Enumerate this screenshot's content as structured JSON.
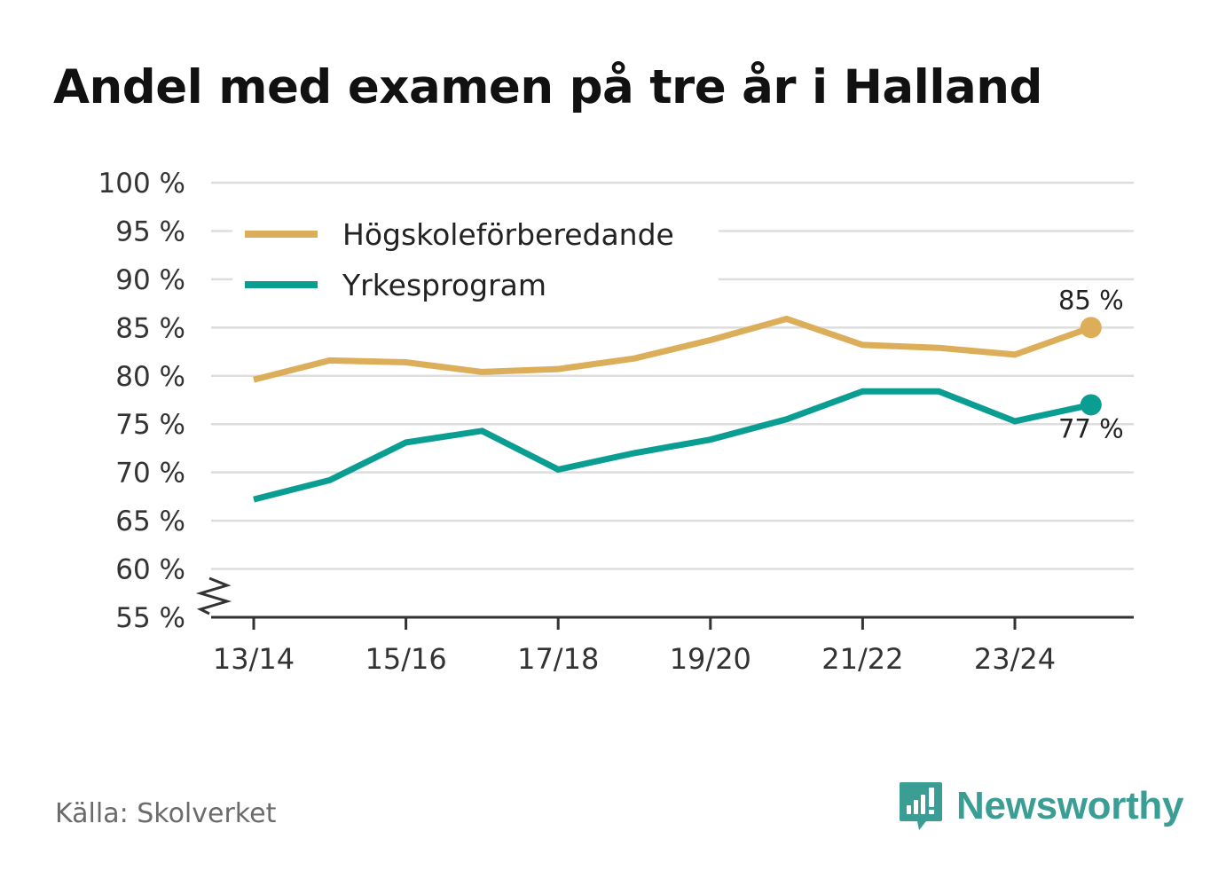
{
  "title": "Andel med examen på tre år i Halland",
  "source": "Källa: Skolverket",
  "brand": {
    "name": "Newsworthy",
    "icon": "newsworthy-logo-icon",
    "color": "#3a9e94"
  },
  "colors": {
    "hogskole": "#dcae5a",
    "yrkes": "#0a9e92",
    "grid": "#dddddd",
    "axis": "#333333"
  },
  "chart_data": {
    "type": "line",
    "title": "Andel med examen på tre år i Halland",
    "xlabel": "",
    "ylabel": "",
    "ylim": [
      55,
      100
    ],
    "y_axis_break": true,
    "yticks": [
      100,
      95,
      90,
      85,
      80,
      75,
      70,
      65,
      60,
      55
    ],
    "ytick_labels": [
      "100 %",
      "95 %",
      "90 %",
      "85 %",
      "80 %",
      "75 %",
      "70 %",
      "65 %",
      "60 %",
      "55 %"
    ],
    "x": [
      "13/14",
      "14/15",
      "15/16",
      "16/17",
      "17/18",
      "18/19",
      "19/20",
      "20/21",
      "21/22",
      "22/23",
      "23/24",
      "24/25"
    ],
    "xtick_labels": [
      "13/14",
      "15/16",
      "17/18",
      "19/20",
      "21/22",
      "23/24"
    ],
    "legend_position": "top-left",
    "series": [
      {
        "name": "Högskoleförberedande",
        "color": "#dcae5a",
        "values": [
          79.6,
          81.6,
          81.4,
          80.4,
          80.7,
          81.8,
          83.7,
          85.9,
          83.2,
          82.9,
          82.2,
          85.0
        ],
        "end_label": "85 %"
      },
      {
        "name": "Yrkesprogram",
        "color": "#0a9e92",
        "values": [
          67.2,
          69.2,
          73.1,
          74.3,
          70.3,
          72.0,
          73.4,
          75.5,
          78.4,
          78.4,
          75.3,
          77.0
        ],
        "end_label": "77 %"
      }
    ]
  }
}
